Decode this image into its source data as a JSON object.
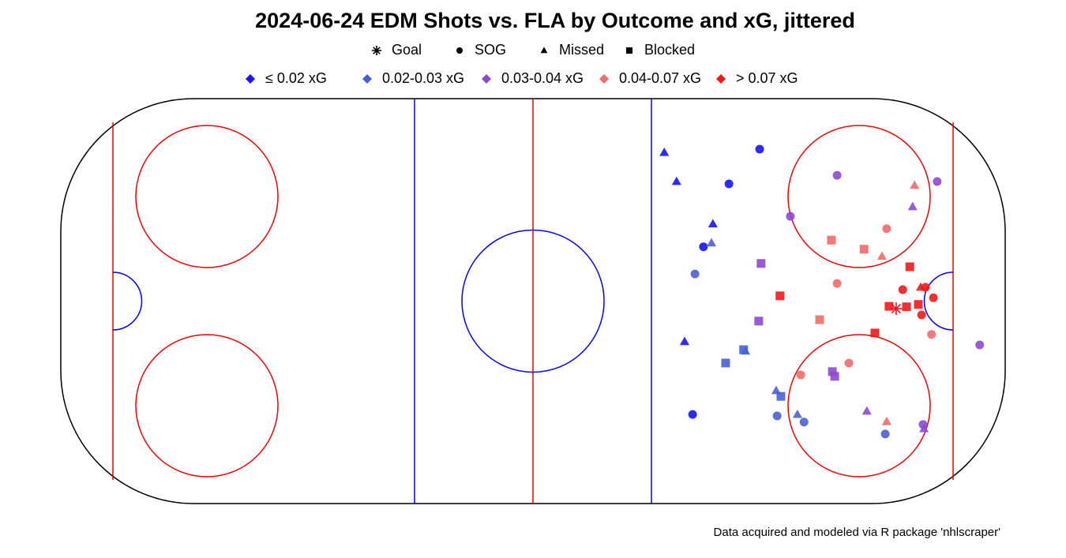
{
  "chart_data": {
    "type": "scatter",
    "title": "2024-06-24 EDM Shots vs. FLA by Outcome and xG, jittered",
    "caption": "Data acquired and modeled via R package 'nhlscraper'",
    "xlim": [
      -100,
      100
    ],
    "ylim": [
      -42.5,
      42.5
    ],
    "outcomes": [
      {
        "name": "Goal",
        "shape": "asterisk"
      },
      {
        "name": "SOG",
        "shape": "circle"
      },
      {
        "name": "Missed",
        "shape": "triangle"
      },
      {
        "name": "Blocked",
        "shape": "square"
      }
    ],
    "series": [
      {
        "name": "≤ 0.02 xG",
        "color": "#1414ff",
        "x": [
          27.8,
          30.4,
          48.0,
          41.5,
          38.1,
          36.1,
          32.1,
          33.8
        ],
        "y": [
          31.2,
          25.1,
          31.9,
          24.6,
          16.2,
          11.4,
          -8.5,
          -23.8
        ],
        "outcome": [
          "Missed",
          "Missed",
          "SOG",
          "SOG",
          "Missed",
          "SOG",
          "Missed",
          "SOG"
        ]
      },
      {
        "name": "0.02-0.03 xG",
        "color": "#4a60d0",
        "x": [
          37.8,
          34.3,
          44.6,
          45.0,
          40.8,
          51.5,
          52.5,
          51.7,
          56.0,
          57.4,
          74.6
        ],
        "y": [
          12.2,
          5.7,
          -10.2,
          -10.5,
          -13.0,
          -18.8,
          -20.0,
          -24.1,
          -23.8,
          -25.4,
          -27.9
        ],
        "outcome": [
          "Missed",
          "SOG",
          "Blocked",
          "Missed",
          "Blocked",
          "Missed",
          "Blocked",
          "SOG",
          "Missed",
          "SOG",
          "SOG"
        ]
      },
      {
        "name": "0.03-0.04 xG",
        "color": "#8c4ad0",
        "x": [
          64.4,
          85.6,
          80.4,
          54.5,
          48.3,
          47.8,
          63.4,
          63.9,
          70.7,
          82.6,
          82.8,
          94.6
        ],
        "y": [
          26.4,
          25.1,
          19.8,
          17.8,
          7.9,
          -4.2,
          -14.8,
          -15.8,
          -23.1,
          -25.9,
          -26.8,
          -9.2
        ],
        "outcome": [
          "SOG",
          "SOG",
          "Missed",
          "SOG",
          "Blocked",
          "Blocked",
          "Blocked",
          "Blocked",
          "Missed",
          "SOG",
          "Missed",
          "SOG"
        ]
      },
      {
        "name": "0.04-0.07 xG",
        "color": "#f26a6a",
        "x": [
          80.8,
          74.9,
          63.2,
          70.1,
          73.9,
          64.4,
          60.7,
          84.4,
          66.9,
          56.7,
          74.9
        ],
        "y": [
          24.3,
          15.2,
          12.8,
          10.9,
          9.4,
          3.7,
          -3.9,
          -7.0,
          -13.0,
          -15.5,
          -25.3
        ],
        "outcome": [
          "Missed",
          "SOG",
          "Blocked",
          "Blocked",
          "Missed",
          "SOG",
          "Blocked",
          "SOG",
          "SOG",
          "SOG",
          "Missed"
        ]
      },
      {
        "name": "> 0.07 xG",
        "color": "#f41818",
        "x": [
          79.8,
          52.3,
          78.3,
          82.1,
          83.1,
          84.8,
          81.6,
          79.1,
          75.4,
          76.9,
          82.3,
          72.4
        ],
        "y": [
          7.2,
          1.1,
          2.4,
          2.9,
          2.9,
          0.7,
          -0.7,
          -1.2,
          -1.1,
          -1.6,
          -2.9,
          -6.7
        ],
        "outcome": [
          "Blocked",
          "Blocked",
          "SOG",
          "Missed",
          "SOG",
          "SOG",
          "Blocked",
          "Blocked",
          "Blocked",
          "Goal",
          "SOG",
          "Blocked"
        ]
      }
    ]
  }
}
